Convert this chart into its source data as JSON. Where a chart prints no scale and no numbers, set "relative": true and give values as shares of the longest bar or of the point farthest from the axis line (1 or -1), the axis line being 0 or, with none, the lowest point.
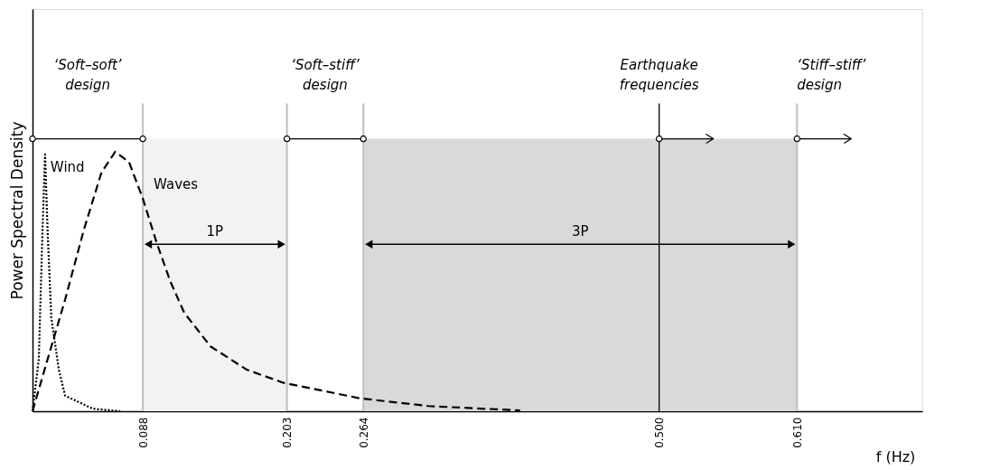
{
  "chart_data": {
    "type": "line",
    "relative": true,
    "xlabel": "f (Hz)",
    "ylabel": "Power Spectral Density",
    "xlim": [
      0,
      0.71
    ],
    "xticks": [
      {
        "value": 0.088,
        "label": "0.088"
      },
      {
        "value": 0.203,
        "label": "0.203"
      },
      {
        "value": 0.264,
        "label": "0.264"
      },
      {
        "value": 0.5,
        "label": "0.500"
      },
      {
        "value": 0.61,
        "label": "0.610"
      }
    ],
    "grid": false,
    "annotations": [
      "‘Soft–soft’\ndesign",
      "‘Soft–stiff’\ndesign"
    ],
    "series": [
      {
        "name": "Waves",
        "color": "#000000",
        "line_style": "dashed",
        "x": [
          0,
          0.012,
          0.026,
          0.041,
          0.055,
          0.066,
          0.077,
          0.088,
          0.099,
          0.11,
          0.121,
          0.142,
          0.171,
          0.2,
          0.261,
          0.316,
          0.389
        ],
        "values": [
          0,
          0.2,
          0.43,
          0.7,
          0.92,
          1,
          0.96,
          0.82,
          0.65,
          0.5,
          0.38,
          0.25,
          0.16,
          0.11,
          0.05,
          0.02,
          0.003
        ]
      },
      {
        "name": "Wind",
        "color": "#000000",
        "line_style": "dotted",
        "x": [
          0,
          0.005,
          0.008,
          0.01,
          0.012,
          0.015,
          0.021,
          0.026,
          0.048,
          0.07
        ],
        "values": [
          0,
          0.2,
          0.7,
          0.99,
          0.7,
          0.36,
          0.16,
          0.06,
          0.01,
          0
        ]
      }
    ],
    "bands": [
      {
        "axis": "x",
        "from": 0.088,
        "to": 0.203,
        "label": "1P",
        "color": "#f2f2f2"
      },
      {
        "axis": "x",
        "from": 0.264,
        "to": 0.61,
        "label": "3P",
        "color": "#d9d9d9"
      }
    ],
    "ref_lines": [
      {
        "axis": "x",
        "value": 0.088,
        "color": "#bfbfbf"
      },
      {
        "axis": "x",
        "value": 0.203,
        "color": "#bfbfbf"
      },
      {
        "axis": "x",
        "value": 0.264,
        "color": "#bfbfbf"
      },
      {
        "axis": "x",
        "value": 0.5,
        "color": "#000000",
        "label": "Earthquake\nfrequencies"
      },
      {
        "axis": "x",
        "value": 0.61,
        "color": "#bfbfbf",
        "label": "‘Stiff–stiff’\ndesign"
      }
    ]
  }
}
